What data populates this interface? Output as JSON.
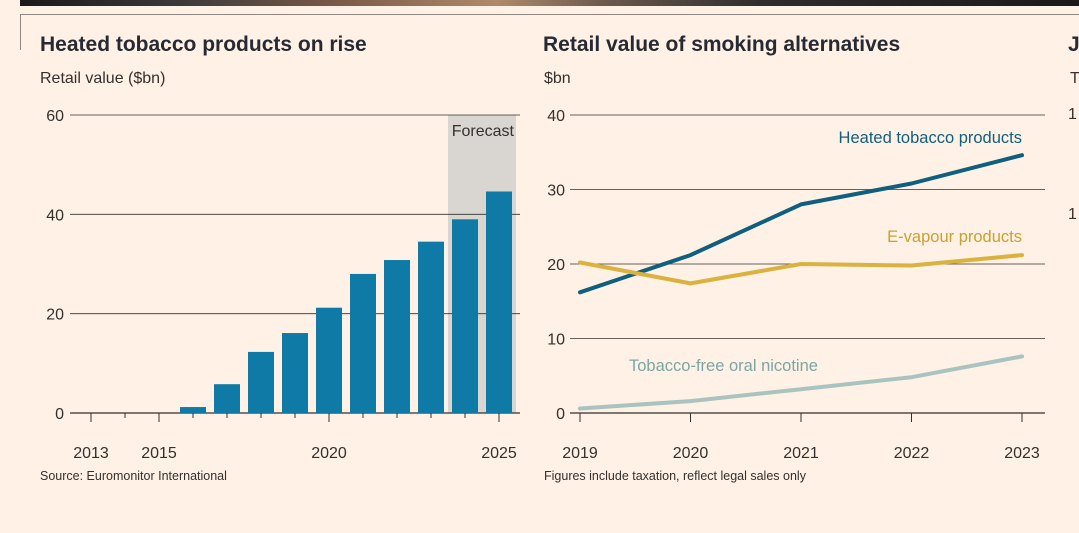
{
  "colors": {
    "background": "#fff1e5",
    "bar": "#0f7aa6",
    "forecast_shade": "#d9d6d2",
    "heated": "#0f5f7f",
    "vapour": "#d9b23f",
    "oral": "#a9c4c0",
    "axis": "#33302e",
    "grid": "#33302e"
  },
  "chart_data": [
    {
      "type": "bar",
      "title": "Heated tobacco products on rise",
      "ylabel": "Retail value ($bn)",
      "xlabel": "",
      "ylim": [
        0,
        60
      ],
      "yticks": [
        0,
        20,
        40,
        60
      ],
      "categories": [
        2013,
        2014,
        2015,
        2016,
        2017,
        2018,
        2019,
        2020,
        2021,
        2022,
        2023,
        2024,
        2025
      ],
      "values": [
        0,
        0,
        0,
        1.2,
        5.8,
        12.3,
        16.1,
        21.2,
        28.0,
        30.8,
        34.5,
        39.0,
        44.6
      ],
      "xtick_labels": [
        2013,
        2015,
        2020,
        2025
      ],
      "forecast": {
        "label": "Forecast",
        "from": 2024,
        "to": 2025
      },
      "source": "Source: Euromonitor International"
    },
    {
      "type": "line",
      "title": "Retail value of smoking alternatives",
      "ylabel": "$bn",
      "xlabel": "",
      "ylim": [
        0,
        40
      ],
      "yticks": [
        0,
        10,
        20,
        30,
        40
      ],
      "x": [
        2019,
        2020,
        2021,
        2022,
        2023
      ],
      "series": [
        {
          "name": "Heated tobacco products",
          "values": [
            16.2,
            21.2,
            28.0,
            30.8,
            34.6
          ]
        },
        {
          "name": "E-vapour products",
          "values": [
            20.2,
            17.4,
            20.0,
            19.8,
            21.2
          ]
        },
        {
          "name": "Tobacco-free oral nicotine",
          "values": [
            0.6,
            1.6,
            3.2,
            4.8,
            7.6
          ]
        }
      ],
      "note": "Figures include taxation, reflect legal sales only"
    }
  ],
  "third_panel": {
    "title_fragment": "J",
    "subtitle_fragment": "T",
    "tick_fragments": [
      "1",
      "1"
    ]
  }
}
